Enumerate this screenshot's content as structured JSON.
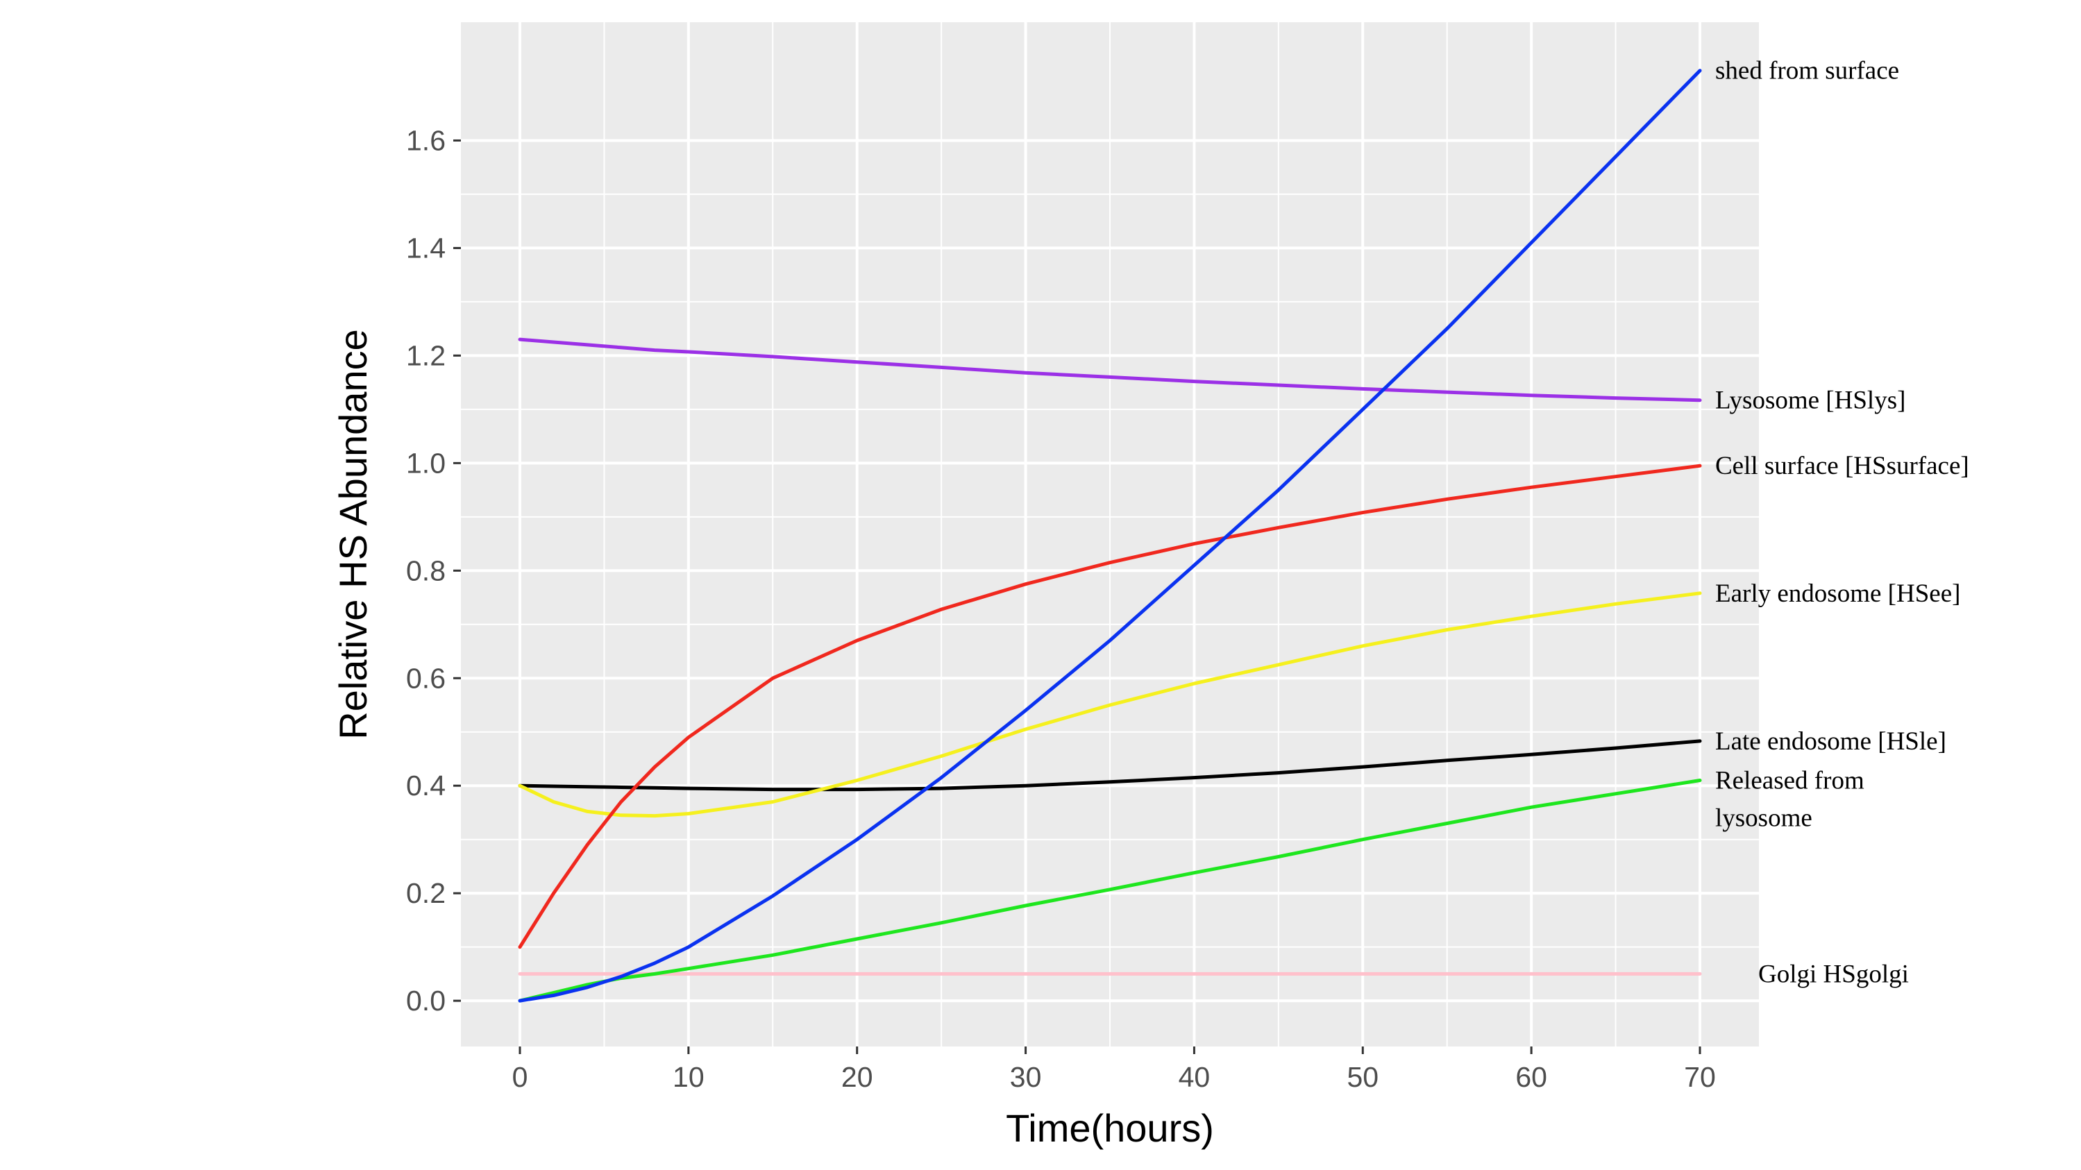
{
  "chart_data": {
    "type": "line",
    "title": "",
    "xlabel": "Time(hours)",
    "ylabel": "Relative HS Abundance",
    "xlim": [
      -3.5,
      73.5
    ],
    "ylim": [
      -0.085,
      1.82
    ],
    "x_ticks": [
      0,
      10,
      20,
      30,
      40,
      50,
      60,
      70
    ],
    "y_ticks": [
      0.0,
      0.2,
      0.4,
      0.6,
      0.8,
      1.0,
      1.2,
      1.4,
      1.6
    ],
    "y_tick_labels": [
      "0.0",
      "0.2",
      "0.4",
      "0.6",
      "0.8",
      "1.0",
      "1.2",
      "1.4",
      "1.6"
    ],
    "grid": true,
    "legend": "direct labels at right end of lines",
    "x": [
      0,
      2,
      4,
      6,
      8,
      10,
      15,
      20,
      25,
      30,
      35,
      40,
      45,
      50,
      55,
      60,
      65,
      70
    ],
    "series": [
      {
        "name": "shed from surface",
        "color": "#0a32f0",
        "values": [
          0.0,
          0.01,
          0.025,
          0.045,
          0.07,
          0.1,
          0.195,
          0.3,
          0.415,
          0.54,
          0.67,
          0.81,
          0.95,
          1.1,
          1.25,
          1.41,
          1.57,
          1.73
        ]
      },
      {
        "name": "Lysosome [HSlys]",
        "color": "#9b30e6",
        "values": [
          1.23,
          1.225,
          1.22,
          1.215,
          1.21,
          1.207,
          1.198,
          1.188,
          1.178,
          1.168,
          1.16,
          1.152,
          1.145,
          1.138,
          1.132,
          1.126,
          1.121,
          1.117
        ]
      },
      {
        "name": "Cell surface [HSsurface]",
        "color": "#f0281e",
        "values": [
          0.1,
          0.2,
          0.29,
          0.37,
          0.435,
          0.49,
          0.6,
          0.67,
          0.728,
          0.775,
          0.815,
          0.85,
          0.88,
          0.908,
          0.933,
          0.955,
          0.975,
          0.995
        ]
      },
      {
        "name": "Early endosome [HSee]",
        "color": "#f5f01e",
        "values": [
          0.4,
          0.37,
          0.352,
          0.345,
          0.344,
          0.348,
          0.37,
          0.41,
          0.455,
          0.505,
          0.55,
          0.59,
          0.625,
          0.66,
          0.69,
          0.715,
          0.738,
          0.758
        ]
      },
      {
        "name": "Late endosome [HSle]",
        "color": "#000000",
        "values": [
          0.4,
          0.399,
          0.398,
          0.397,
          0.396,
          0.395,
          0.393,
          0.393,
          0.395,
          0.4,
          0.407,
          0.415,
          0.424,
          0.435,
          0.447,
          0.458,
          0.47,
          0.483
        ]
      },
      {
        "name": "Released from lysosome",
        "label_lines": [
          "Released from",
          "lysosome"
        ],
        "color": "#1ee61e",
        "values": [
          0.0,
          0.015,
          0.03,
          0.042,
          0.05,
          0.06,
          0.085,
          0.115,
          0.145,
          0.177,
          0.207,
          0.238,
          0.268,
          0.3,
          0.33,
          0.36,
          0.385,
          0.41
        ]
      },
      {
        "name": "Golgi HSgolgi",
        "color": "#ffc0cb",
        "values": [
          0.05,
          0.05,
          0.05,
          0.05,
          0.05,
          0.05,
          0.05,
          0.05,
          0.05,
          0.05,
          0.05,
          0.05,
          0.05,
          0.05,
          0.05,
          0.05,
          0.05,
          0.05
        ]
      }
    ]
  }
}
